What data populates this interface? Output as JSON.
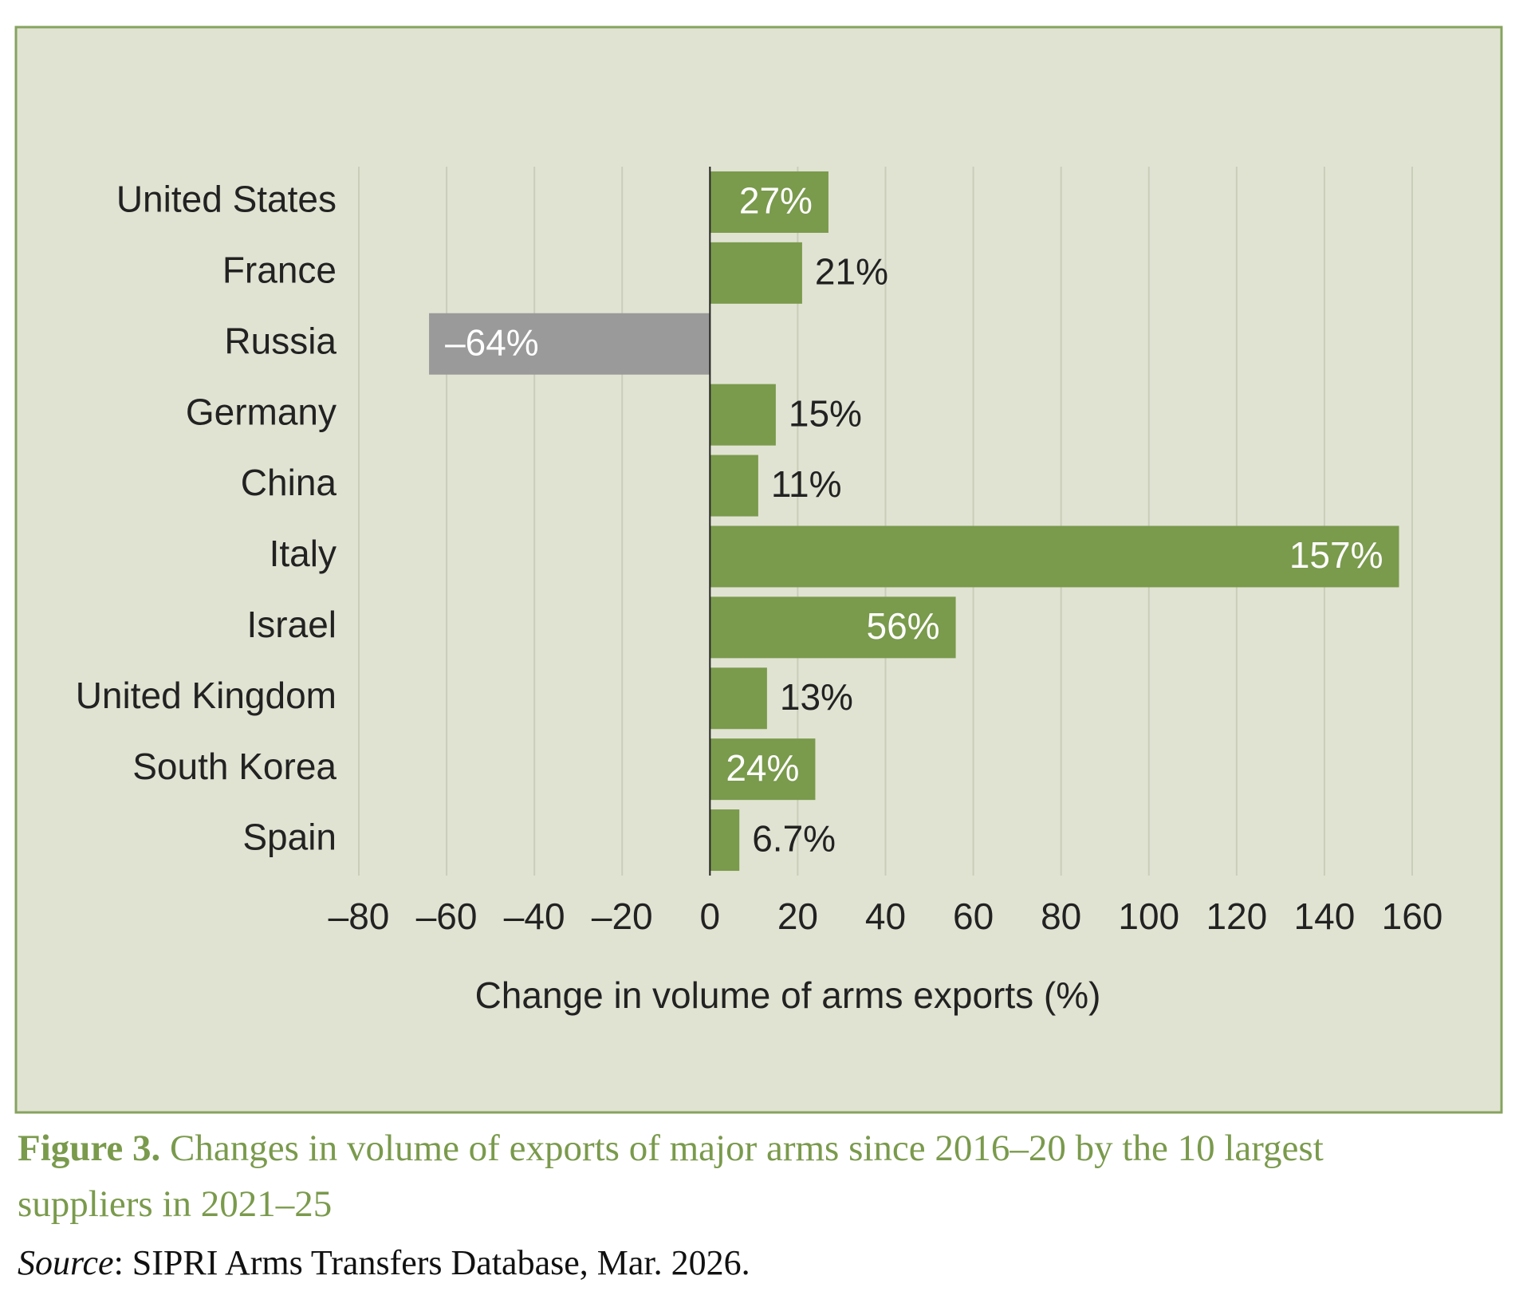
{
  "chart_data": {
    "type": "bar",
    "orientation": "horizontal",
    "categories": [
      "United States",
      "France",
      "Russia",
      "Germany",
      "China",
      "Italy",
      "Israel",
      "United Kingdom",
      "South Korea",
      "Spain"
    ],
    "values": [
      27,
      21,
      -64,
      15,
      11,
      157,
      56,
      13,
      24,
      6.7
    ],
    "value_labels": [
      "27%",
      "21%",
      "–64%",
      "15%",
      "11%",
      "157%",
      "56%",
      "13%",
      "24%",
      "6.7%"
    ],
    "colors": {
      "positive": "#7a9a4c",
      "negative": "#9a9a9a"
    },
    "xlim": [
      -80,
      160
    ],
    "xticks": [
      {
        "value": -80,
        "label": "–80"
      },
      {
        "value": -60,
        "label": "–60"
      },
      {
        "value": -40,
        "label": "–40"
      },
      {
        "value": -20,
        "label": "–20"
      },
      0,
      20,
      40,
      60,
      80,
      100,
      120,
      140,
      160
    ],
    "xlabel": "Change in volume of arms exports (%)",
    "grid": true
  },
  "caption": {
    "label": "Figure 3.",
    "text": "Changes in volume of exports of major arms since 2016–20 by the 10 largest suppliers in 2021–25"
  },
  "source": {
    "label": "Source",
    "text": ": SIPRI Arms Transfers Database, Mar. 2026."
  }
}
